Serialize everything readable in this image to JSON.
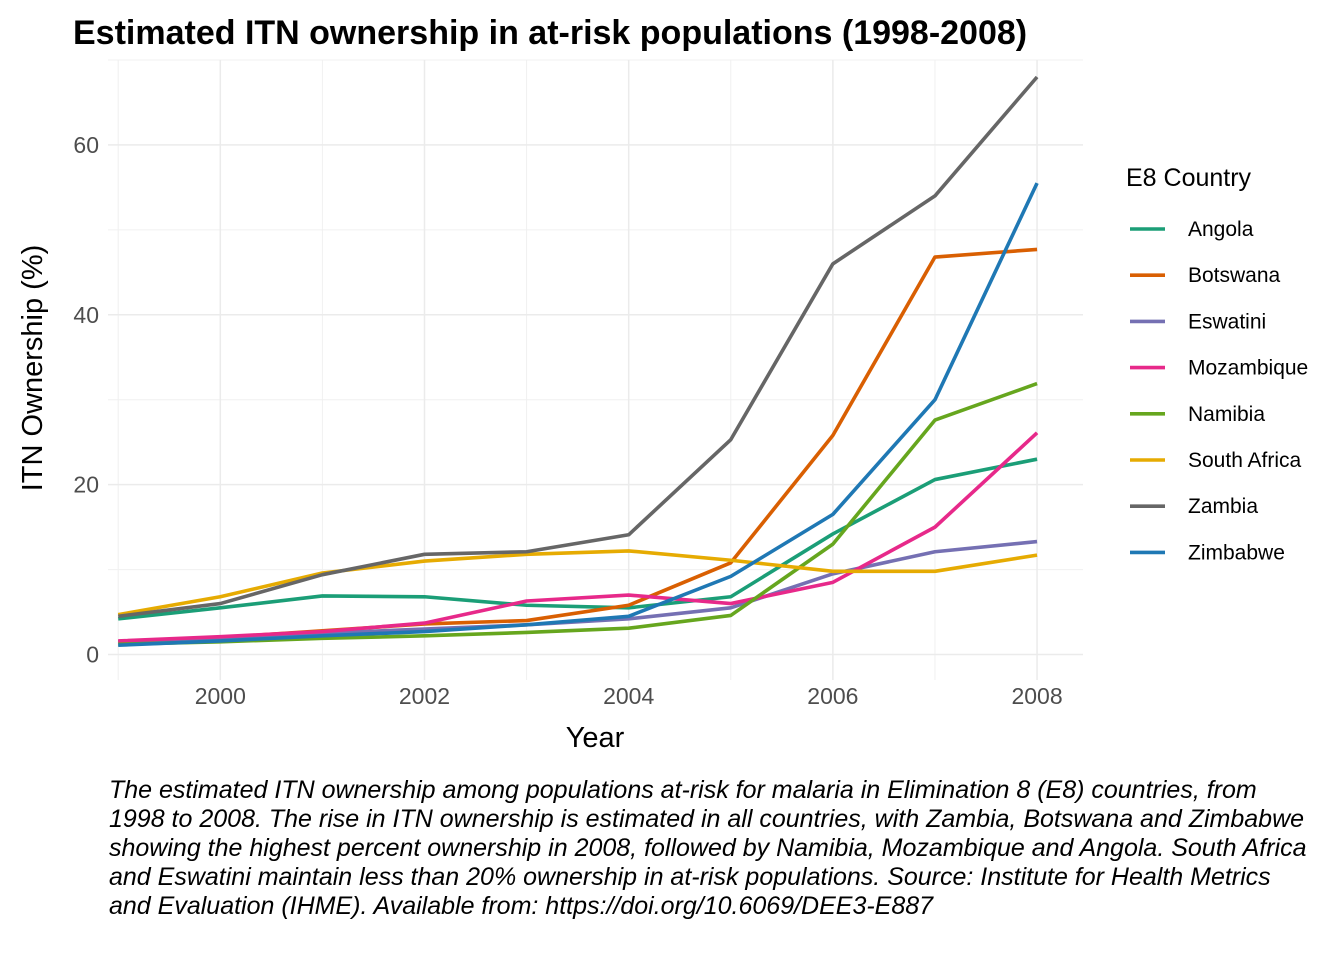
{
  "chart_data": {
    "type": "line",
    "title": "Estimated ITN ownership in at-risk populations (1998-2008)",
    "xlabel": "Year",
    "ylabel": "ITN Ownership (%)",
    "xlim": [
      1998.9,
      2008.45
    ],
    "ylim": [
      -3,
      70
    ],
    "x_ticks": [
      2000,
      2002,
      2004,
      2006,
      2008
    ],
    "y_ticks": [
      0,
      20,
      40,
      60
    ],
    "grid": true,
    "legend_title": "E8 Country",
    "legend_position": "right",
    "x": [
      1999,
      2000,
      2001,
      2002,
      2003,
      2004,
      2005,
      2006,
      2007,
      2008
    ],
    "series": [
      {
        "name": "Angola",
        "color": "#1b9e77",
        "values": [
          4.2,
          5.5,
          6.9,
          6.8,
          5.8,
          5.5,
          6.8,
          14.2,
          20.6,
          23.0
        ]
      },
      {
        "name": "Botswana",
        "color": "#d95f02",
        "values": [
          1.5,
          2.0,
          2.8,
          3.6,
          4.0,
          5.8,
          10.8,
          25.8,
          46.8,
          47.7
        ]
      },
      {
        "name": "Eswatini",
        "color": "#7570b3",
        "values": [
          1.5,
          2.0,
          2.5,
          3.0,
          3.5,
          4.2,
          5.5,
          9.5,
          12.1,
          13.3
        ]
      },
      {
        "name": "Mozambique",
        "color": "#e7298a",
        "values": [
          1.6,
          2.1,
          2.7,
          3.7,
          6.3,
          7.0,
          6.0,
          8.5,
          15.0,
          26.1
        ]
      },
      {
        "name": "Namibia",
        "color": "#66a61e",
        "values": [
          1.2,
          1.5,
          1.9,
          2.2,
          2.6,
          3.1,
          4.6,
          13.0,
          27.6,
          31.9
        ]
      },
      {
        "name": "South Africa",
        "color": "#e6ab02",
        "values": [
          4.7,
          6.8,
          9.6,
          11.0,
          11.8,
          12.2,
          11.1,
          9.8,
          9.8,
          11.7
        ]
      },
      {
        "name": "Zambia",
        "color": "#666666",
        "values": [
          4.5,
          6.0,
          9.4,
          11.8,
          12.1,
          14.1,
          25.3,
          46.0,
          54.0,
          68.0
        ]
      },
      {
        "name": "Zimbabwe",
        "color": "#1f78b4",
        "values": [
          1.1,
          1.6,
          2.2,
          2.7,
          3.5,
          4.5,
          9.2,
          16.5,
          30.0,
          55.5
        ]
      }
    ],
    "caption": "The estimated ITN ownership among populations at-risk for malaria in Elimination 8 (E8) countries, from 1998 to 2008. The rise in ITN ownership is estimated in all countries, with Zambia, Botswana and Zimbabwe showing the highest percent ownership in 2008, followed by Namibia, Mozambique and Angola. South Africa and Eswatini maintain less than 20% ownership in at-risk populations. Source: Institute for Health Metrics and Evaluation (IHME). Available from: https://doi.org/10.6069/DEE3-E887"
  }
}
